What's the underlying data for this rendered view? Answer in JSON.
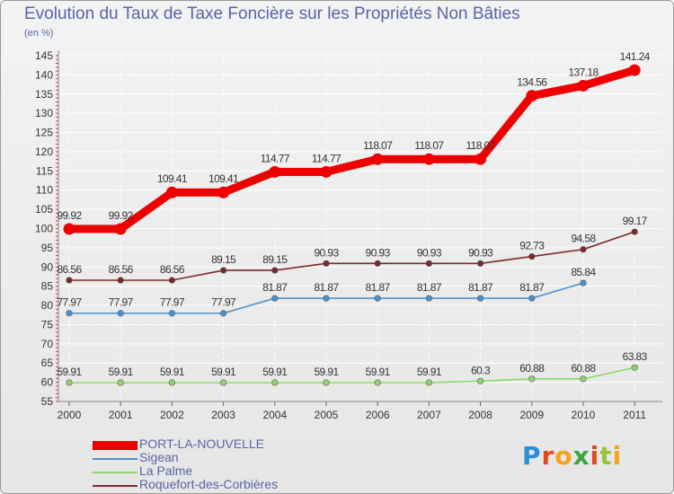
{
  "title": "Evolution du Taux de Taxe Foncière sur les Propriétés Non Bâties",
  "unit_label": "(en %)",
  "logo": {
    "letters": [
      "P",
      "r",
      "o",
      "x",
      "i",
      "t",
      "i"
    ],
    "colors": [
      "#2a8fd6",
      "#e24a1e",
      "#f6a21a",
      "#3aa63a",
      "#e24a1e",
      "#9ac23c",
      "#f6a21a"
    ]
  },
  "chart_data": {
    "type": "line",
    "title": "Evolution du Taux de Taxe Foncière sur les Propriétés Non Bâties",
    "ylabel": "(en %)",
    "xlabel": "",
    "ylim": [
      55,
      145
    ],
    "yticks": [
      55,
      60,
      65,
      70,
      75,
      80,
      85,
      90,
      95,
      100,
      105,
      110,
      115,
      120,
      125,
      130,
      135,
      140,
      145
    ],
    "categories": [
      "2000",
      "2001",
      "2002",
      "2003",
      "2004",
      "2005",
      "2006",
      "2007",
      "2008",
      "2009",
      "2010",
      "2011"
    ],
    "grid": true,
    "series": [
      {
        "name": "PORT-LA-NOUVELLE",
        "color": "#ee0000",
        "values": [
          99.92,
          99.92,
          109.41,
          109.41,
          114.77,
          114.77,
          118.07,
          118.07,
          118.07,
          134.56,
          137.18,
          141.24
        ],
        "labels": [
          "99.92",
          "99.92",
          "109.41",
          "109.41",
          "114.77",
          "114.77",
          "118.07",
          "118.07",
          "118.07",
          "134.56",
          "137.18",
          "141.24"
        ]
      },
      {
        "name": "Sigean",
        "color": "#4d92cc",
        "values": [
          77.97,
          77.97,
          77.97,
          77.97,
          81.87,
          81.87,
          81.87,
          81.87,
          81.87,
          81.87,
          85.84,
          null
        ],
        "labels": [
          "77.97",
          "77.97",
          "77.97",
          "77.97",
          "81.87",
          "81.87",
          "81.87",
          "81.87",
          "81.87",
          "81.87",
          "85.84",
          null
        ]
      },
      {
        "name": "La Palme",
        "color": "#8fd66e",
        "values": [
          59.91,
          59.91,
          59.91,
          59.91,
          59.91,
          59.91,
          59.91,
          59.91,
          60.3,
          60.88,
          60.88,
          63.83
        ],
        "labels": [
          "59.91",
          "59.91",
          "59.91",
          "59.91",
          "59.91",
          "59.91",
          "59.91",
          "59.91",
          "60.3",
          "60.88",
          "60.88",
          "63.83"
        ]
      },
      {
        "name": "Roquefort-des-Corbières",
        "color": "#7a2a2a",
        "values": [
          86.56,
          86.56,
          86.56,
          89.15,
          89.15,
          90.93,
          90.93,
          90.93,
          90.93,
          92.73,
          94.58,
          99.17
        ],
        "labels": [
          "86.56",
          "86.56",
          "86.56",
          "89.15",
          "89.15",
          "90.93",
          "90.93",
          "90.93",
          "90.93",
          "92.73",
          "94.58",
          "99.17"
        ]
      }
    ],
    "legend": [
      "PORT-LA-NOUVELLE",
      "Sigean",
      "La Palme",
      "Roquefort-des-Corbières"
    ]
  }
}
